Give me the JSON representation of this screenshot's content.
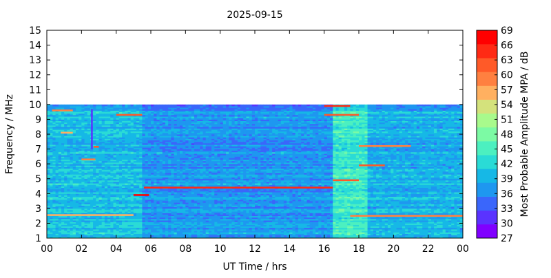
{
  "chart_data": {
    "type": "heatmap",
    "title": "2025-09-15",
    "xlabel": "UT Time / hrs",
    "ylabel": "Frequency / MHz",
    "colorbar_label": "Most Probable Amplitude MPA / dB",
    "x_range": [
      0,
      24
    ],
    "y_range": [
      1,
      15
    ],
    "data_y_max": 10,
    "x_ticks": [
      "00",
      "02",
      "04",
      "06",
      "08",
      "10",
      "12",
      "14",
      "16",
      "18",
      "20",
      "22",
      "00"
    ],
    "y_ticks": [
      "1",
      "2",
      "3",
      "4",
      "5",
      "6",
      "7",
      "8",
      "9",
      "10",
      "11",
      "12",
      "13",
      "14",
      "15"
    ],
    "colorbar_ticks": [
      "27",
      "30",
      "33",
      "36",
      "39",
      "42",
      "45",
      "48",
      "51",
      "54",
      "57",
      "60",
      "63",
      "66",
      "69"
    ],
    "colorbar_range": [
      27,
      69
    ],
    "colorbar_colors": [
      "#8000ff",
      "#5a33ff",
      "#3a66fb",
      "#1e97f0",
      "#16b8e6",
      "#2adbd6",
      "#4cf0c0",
      "#7cfaa4",
      "#a8fa8c",
      "#d4e27c",
      "#ffb060",
      "#ff8040",
      "#ff5a28",
      "#ff2a14",
      "#ff0000"
    ],
    "grid": false,
    "colorbar_placement": "right",
    "time_segments": [
      {
        "x_start": 0,
        "x_end": 5.5,
        "typical_db": 40
      },
      {
        "x_start": 5.5,
        "x_end": 16.5,
        "typical_db": 37
      },
      {
        "x_start": 16.5,
        "x_end": 18.5,
        "typical_db": 44
      },
      {
        "x_start": 18.5,
        "x_end": 24,
        "typical_db": 39
      }
    ],
    "features": [
      {
        "desc": "strong line",
        "x_start": 5.6,
        "x_end": 16.5,
        "freq": 4.4,
        "db": 66
      },
      {
        "desc": "strong line",
        "x_start": 17.5,
        "x_end": 24,
        "freq": 2.5,
        "db": 60
      },
      {
        "desc": "strong line",
        "x_start": 0,
        "x_end": 5.0,
        "freq": 2.55,
        "db": 57
      },
      {
        "desc": "burst",
        "x_start": 5.0,
        "x_end": 5.9,
        "freq": 3.9,
        "db": 69
      },
      {
        "desc": "burst",
        "x_start": 16.0,
        "x_end": 17.5,
        "freq": 9.9,
        "db": 64
      },
      {
        "desc": "burst",
        "x_start": 16.0,
        "x_end": 18.0,
        "freq": 9.3,
        "db": 62
      },
      {
        "desc": "burst",
        "x_start": 18.0,
        "x_end": 21.0,
        "freq": 7.2,
        "db": 60
      },
      {
        "desc": "burst",
        "x_start": 16.5,
        "x_end": 18.0,
        "freq": 4.9,
        "db": 63
      },
      {
        "desc": "burst",
        "x_start": 2.0,
        "x_end": 2.8,
        "freq": 6.3,
        "db": 58
      },
      {
        "desc": "burst",
        "x_start": 4.0,
        "x_end": 5.5,
        "freq": 9.3,
        "db": 61
      },
      {
        "desc": "burst",
        "x_start": 0.3,
        "x_end": 1.5,
        "freq": 9.6,
        "db": 60
      },
      {
        "desc": "burst",
        "x_start": 2.7,
        "x_end": 3.0,
        "freq": 7.15,
        "db": 62
      },
      {
        "desc": "burst",
        "x_start": 18.0,
        "x_end": 19.5,
        "freq": 5.9,
        "db": 63
      },
      {
        "desc": "burst",
        "x_start": 0.8,
        "x_end": 1.5,
        "freq": 8.1,
        "db": 56
      },
      {
        "desc": "faint line",
        "x_start": 2.55,
        "x_end": 2.65,
        "freq_range": [
          7.0,
          9.7
        ],
        "db": 30
      }
    ]
  }
}
